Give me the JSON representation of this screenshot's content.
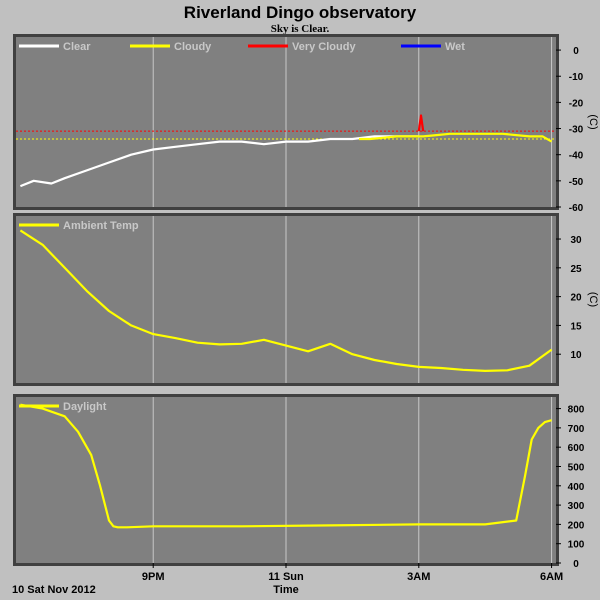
{
  "header": {
    "title": "Riverland Dingo observatory",
    "subtitle": "Sky is Clear."
  },
  "colors": {
    "plot_bg": "#808080",
    "page_bg": "#c0c0c0",
    "grid": "#c8c8c8",
    "clear": "#ffffff",
    "cloudy": "#ffff00",
    "very_cloudy": "#ff0000",
    "wet": "#0000ff",
    "legend_text": "#c8c8c8"
  },
  "xaxis": {
    "start_label": "10 Sat Nov 2012",
    "title": "Time",
    "tick_labels": [
      "9PM",
      "11 Sun",
      "3AM",
      "6AM"
    ]
  },
  "chart_data": [
    {
      "type": "line",
      "title": "",
      "ylabel": "(C)",
      "ylim": [
        -60,
        5
      ],
      "yticks": [
        0,
        -10,
        -20,
        -30,
        -40,
        -50,
        -60
      ],
      "legend": [
        "Clear",
        "Cloudy",
        "Very Cloudy",
        "Wet"
      ],
      "legend_colors": [
        "#ffffff",
        "#ffff00",
        "#ff0000",
        "#0000ff"
      ],
      "thresholds": [
        {
          "name": "Very Cloudy",
          "value": -31,
          "color": "#ff0000"
        },
        {
          "name": "Cloudy",
          "value": -34,
          "color": "#ffff00"
        }
      ],
      "x_hours": [
        0,
        1,
        2,
        3,
        4,
        5,
        6,
        7,
        8,
        9
      ],
      "series": [
        {
          "name": "Clear",
          "color": "#ffffff",
          "x": [
            0,
            0.3,
            0.7,
            1.0,
            1.5,
            2.0,
            2.5,
            3.0,
            3.5,
            4.0,
            4.5,
            5.0,
            5.5,
            6.0,
            6.5,
            7.0,
            7.5,
            8.0,
            8.5,
            9.0
          ],
          "y": [
            -52,
            -50,
            -51,
            -49,
            -46,
            -43,
            -40,
            -38,
            -37,
            -36,
            -35,
            -35,
            -36,
            -35,
            -35,
            -34,
            -34,
            -33,
            -33,
            -33
          ]
        },
        {
          "name": "Cloudy",
          "color": "#ffff00",
          "x": [
            7.65,
            7.9,
            8.2,
            8.5,
            8.8,
            9.1,
            9.4,
            9.7,
            10.0,
            10.3,
            10.6,
            10.9,
            11.2,
            11.5,
            11.8,
            12.0
          ],
          "y": [
            -34,
            -34,
            -33.5,
            -33,
            -33,
            -33,
            -32.5,
            -32,
            -32,
            -32,
            -32,
            -32,
            -32.5,
            -33,
            -33,
            -35
          ]
        },
        {
          "name": "Very Cloudy",
          "color": "#ff0000",
          "x": [
            9.0,
            9.05,
            9.1
          ],
          "y": [
            -31,
            -25,
            -31
          ]
        }
      ]
    },
    {
      "type": "line",
      "title": "",
      "ylabel": "(C)",
      "ylim": [
        5,
        34
      ],
      "yticks": [
        10,
        15,
        20,
        25,
        30
      ],
      "legend": [
        "Ambient Temp"
      ],
      "legend_colors": [
        "#ffff00"
      ],
      "series": [
        {
          "name": "Ambient Temp",
          "color": "#ffff00",
          "x": [
            0,
            0.5,
            1.0,
            1.5,
            2.0,
            2.5,
            3.0,
            3.5,
            4.0,
            4.5,
            5.0,
            5.5,
            6.0,
            6.5,
            7.0,
            7.5,
            8.0,
            8.5,
            9.0,
            9.5,
            10.0,
            10.5,
            11.0,
            11.5,
            12.0
          ],
          "y": [
            31.5,
            29,
            25,
            21,
            17.5,
            15,
            13.5,
            12.8,
            12,
            11.7,
            11.8,
            12.5,
            11.5,
            10.5,
            11.8,
            10.0,
            9.0,
            8.3,
            7.8,
            7.6,
            7.3,
            7.1,
            7.2,
            8.0,
            10.8
          ]
        }
      ]
    },
    {
      "type": "line",
      "title": "",
      "ylabel": "",
      "ylim": [
        0,
        860
      ],
      "yticks": [
        0,
        100,
        200,
        300,
        400,
        500,
        600,
        700,
        800
      ],
      "legend": [
        "Daylight"
      ],
      "legend_colors": [
        "#ffff00"
      ],
      "series": [
        {
          "name": "Daylight",
          "color": "#ffff00",
          "x": [
            0,
            0.5,
            1.0,
            1.3,
            1.6,
            1.8,
            2.0,
            2.1,
            2.2,
            2.4,
            3.0,
            5.0,
            7.0,
            9.0,
            10.5,
            11.2,
            11.4,
            11.55,
            11.7,
            11.85,
            12.0
          ],
          "y": [
            820,
            800,
            760,
            680,
            560,
            400,
            220,
            190,
            185,
            185,
            190,
            190,
            195,
            200,
            200,
            220,
            450,
            640,
            700,
            730,
            740
          ]
        }
      ]
    }
  ]
}
